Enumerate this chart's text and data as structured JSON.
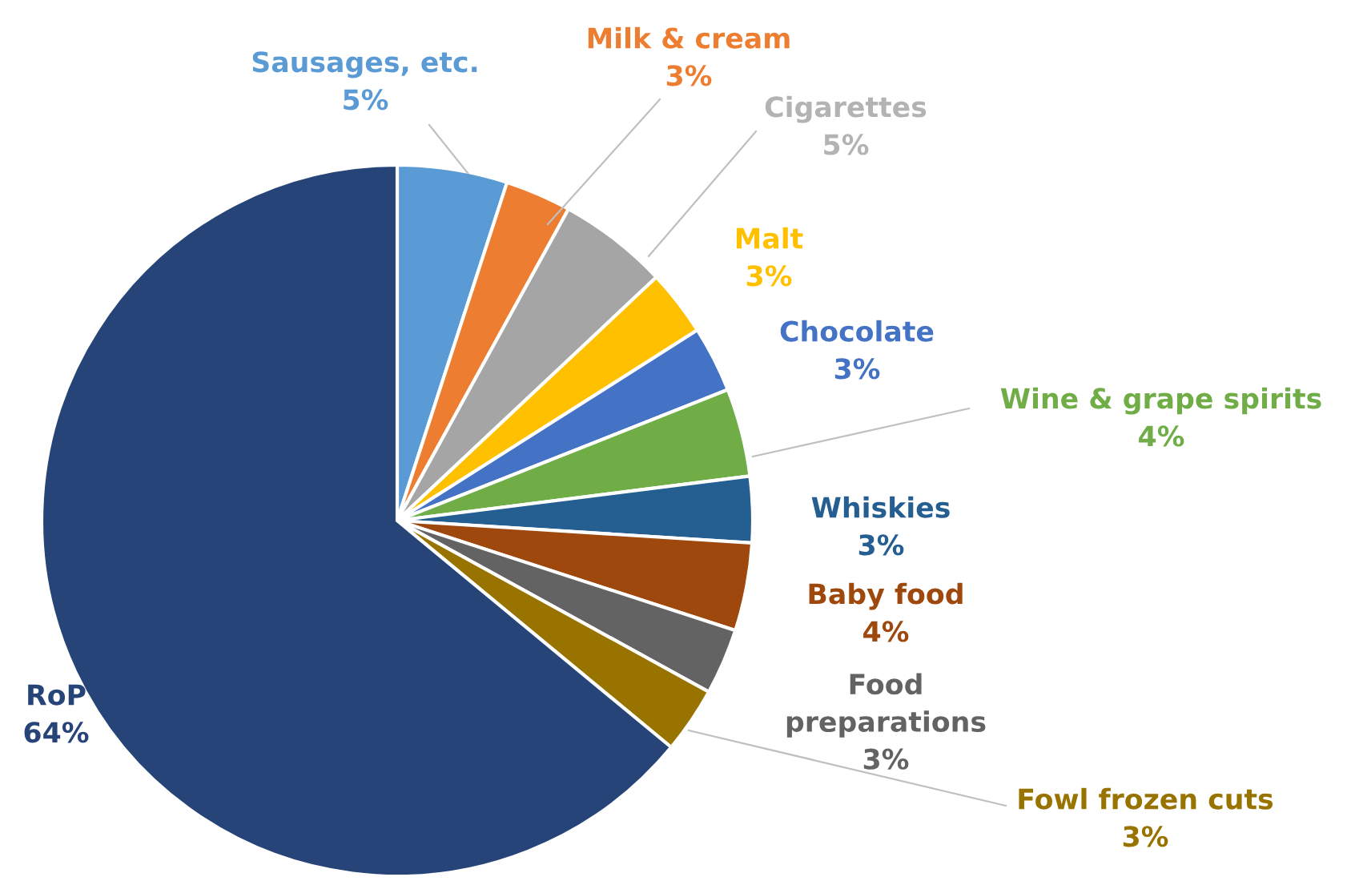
{
  "chart_data": {
    "type": "pie",
    "categories": [
      "Sausages, etc.",
      "Milk & cream",
      "Cigarettes",
      "Malt",
      "Chocolate",
      "Wine & grape spirits",
      "Whiskies",
      "Baby food",
      "Food preparations",
      "Fowl frozen cuts",
      "RoP"
    ],
    "values": [
      5,
      3,
      5,
      3,
      3,
      4,
      3,
      4,
      3,
      3,
      64
    ],
    "colors": [
      "#5b9bd5",
      "#ed7d31",
      "#a5a5a5",
      "#ffc000",
      "#4472c4",
      "#70ad47",
      "#255e91",
      "#9e480e",
      "#636363",
      "#997300",
      "#264478"
    ],
    "value_labels": [
      "5%",
      "3%",
      "5%",
      "3%",
      "3%",
      "4%",
      "3%",
      "4%",
      "3%",
      "3%",
      "64%"
    ]
  }
}
